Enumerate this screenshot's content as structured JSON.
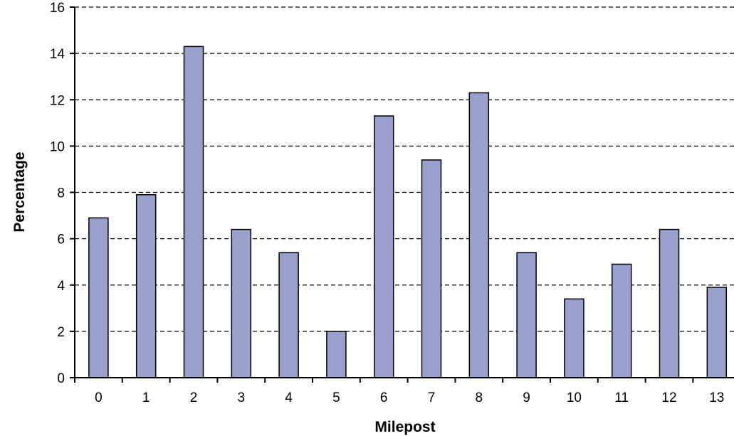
{
  "chart_data": {
    "type": "bar",
    "title": "",
    "xlabel": "Milepost",
    "ylabel": "Percentage",
    "categories": [
      "0",
      "1",
      "2",
      "3",
      "4",
      "5",
      "6",
      "7",
      "8",
      "9",
      "10",
      "11",
      "12",
      "13"
    ],
    "values": [
      6.9,
      7.9,
      14.3,
      6.4,
      5.4,
      2.0,
      11.3,
      9.4,
      12.3,
      5.4,
      3.4,
      4.9,
      6.4,
      3.9
    ],
    "ylim": [
      0,
      16
    ],
    "yticks": [
      0,
      2,
      4,
      6,
      8,
      10,
      12,
      14,
      16
    ],
    "grid": "horizontal dashed",
    "legend": "none",
    "colors": {
      "bar_fill": "#9aa0cc",
      "bar_stroke": "#000000",
      "grid": "#000000",
      "axis": "#000000"
    }
  }
}
